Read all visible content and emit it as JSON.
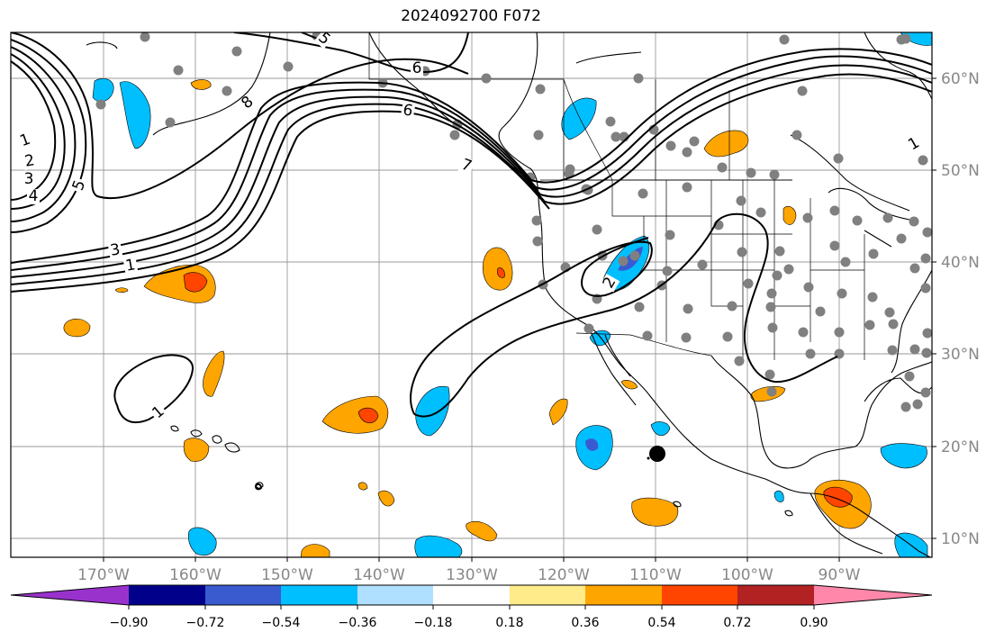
{
  "title": "2024092700 F072",
  "lon_labels": [
    "170°W",
    "160°W",
    "150°W",
    "140°W",
    "130°W",
    "120°W",
    "110°W",
    "100°W",
    "90°W"
  ],
  "lat_labels": [
    "60°N",
    "50°N",
    "40°N",
    "30°N",
    "20°N",
    "10°N"
  ],
  "colorbar": {
    "tick_labels": [
      "−0.90",
      "−0.72",
      "−0.54",
      "−0.36",
      "−0.18",
      "0.18",
      "0.36",
      "0.54",
      "0.72",
      "0.90"
    ],
    "colors": [
      "#9932cc",
      "#00008b",
      "#3a5bd0",
      "#00bfff",
      "#b0e0ff",
      "#ffffff",
      "#ffeb8a",
      "#ffa500",
      "#ff4500",
      "#b22222",
      "#ff88aa"
    ]
  },
  "contour_labels": [
    "1",
    "2",
    "3",
    "4",
    "5",
    "5",
    "6",
    "6",
    "8",
    "7",
    "1",
    "3",
    "1",
    "2",
    "1"
  ],
  "colors": {
    "station": "#808080",
    "storm_marker": "#000000",
    "grid": "#999999"
  }
}
